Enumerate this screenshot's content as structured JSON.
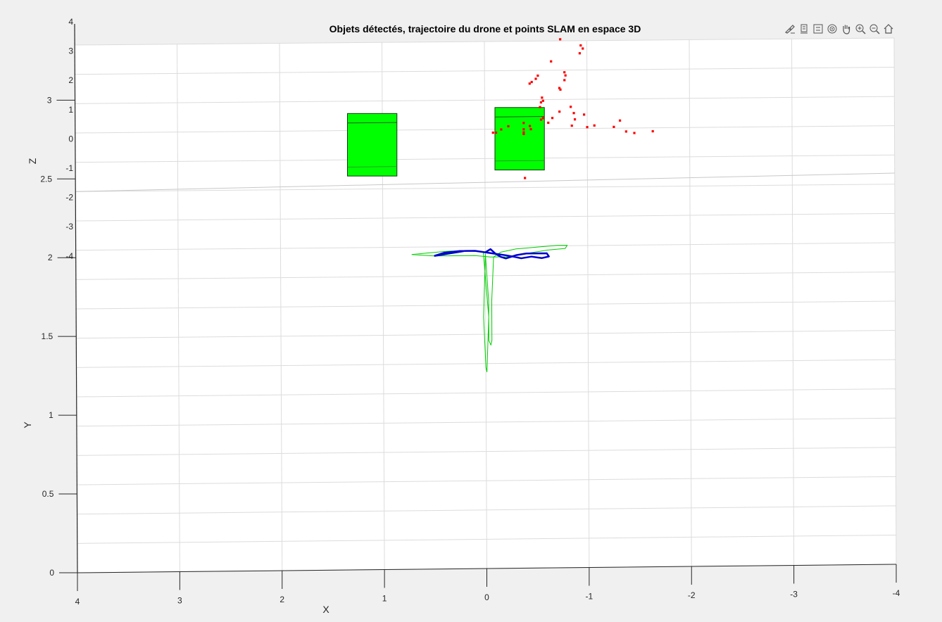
{
  "chart_data": {
    "type": "scatter",
    "title": "Objets détectés, trajectoire du drone et points SLAM en espace 3D",
    "xlabel": "X",
    "ylabel": "Y",
    "zlabel": "Z",
    "x_ticks": [
      "4",
      "3",
      "2",
      "1",
      "0",
      "-1",
      "-2",
      "-3",
      "-4"
    ],
    "y_ticks": [
      "0",
      "0.5",
      "1",
      "1.5",
      "2",
      "2.5",
      "3"
    ],
    "z_ticks": [
      "4",
      "3",
      "2",
      "1",
      "0",
      "-1",
      "-2",
      "-3",
      "-4"
    ],
    "xlim": [
      -4,
      4
    ],
    "ylim": [
      0,
      3
    ],
    "zlim": [
      -4,
      4
    ],
    "view": "top-down (X-Y plane)",
    "grid": true,
    "objects": [
      {
        "x": [
          0.86,
          1.34
        ],
        "y": [
          2.5,
          2.9
        ],
        "color": "#00ff00"
      },
      {
        "x": [
          -0.58,
          -0.1
        ],
        "y": [
          2.53,
          2.93
        ],
        "color": "#00ff00"
      }
    ],
    "slam_points": {
      "color": "#ff0000",
      "points": [
        [
          -0.74,
          3.36
        ],
        [
          -0.94,
          3.32
        ],
        [
          -0.96,
          3.3
        ],
        [
          -0.93,
          3.27
        ],
        [
          -0.65,
          3.22
        ],
        [
          -0.78,
          3.15
        ],
        [
          -0.79,
          3.13
        ],
        [
          -0.52,
          3.13
        ],
        [
          -0.5,
          3.11
        ],
        [
          -0.46,
          3.09
        ],
        [
          -0.44,
          3.08
        ],
        [
          -0.78,
          3.1
        ],
        [
          -0.73,
          3.05
        ],
        [
          -0.74,
          3.04
        ],
        [
          -0.56,
          2.99
        ],
        [
          -0.57,
          2.97
        ],
        [
          -0.55,
          2.96
        ],
        [
          -0.54,
          2.93
        ],
        [
          -0.84,
          2.93
        ],
        [
          -0.73,
          2.9
        ],
        [
          -0.97,
          2.88
        ],
        [
          -0.87,
          2.89
        ],
        [
          -0.66,
          2.86
        ],
        [
          -0.57,
          2.86
        ],
        [
          -0.55,
          2.85
        ],
        [
          -0.88,
          2.85
        ],
        [
          -1.32,
          2.84
        ],
        [
          -0.62,
          2.83
        ],
        [
          -0.38,
          2.83
        ],
        [
          -0.44,
          2.81
        ],
        [
          -0.85,
          2.81
        ],
        [
          -1.07,
          2.81
        ],
        [
          -1.0,
          2.8
        ],
        [
          -1.26,
          2.8
        ],
        [
          -0.16,
          2.79
        ],
        [
          -0.23,
          2.81
        ],
        [
          -0.38,
          2.79
        ],
        [
          -0.45,
          2.79
        ],
        [
          -0.11,
          2.77
        ],
        [
          -0.08,
          2.77
        ],
        [
          -0.38,
          2.77
        ],
        [
          -1.38,
          2.77
        ],
        [
          -0.38,
          2.76
        ],
        [
          -1.46,
          2.76
        ],
        [
          -1.64,
          2.77
        ],
        [
          -0.39,
          2.48
        ]
      ]
    },
    "series": [
      {
        "color": "#00cc00",
        "x": [
          0.72,
          0.55,
          0.35,
          0.15,
          0.02,
          -0.03,
          -0.01,
          0.0,
          0.02,
          0.0,
          -0.03,
          -0.03,
          -0.05,
          -0.06,
          -0.06,
          -0.08,
          -0.15,
          -0.3,
          -0.5,
          -0.7,
          -0.8,
          -0.78,
          -0.6,
          -0.4,
          -0.2,
          -0.05,
          0.1,
          0.3,
          0.5,
          0.72
        ],
        "y": [
          2.0,
          2.01,
          2.02,
          2.02,
          2.01,
          1.6,
          1.25,
          1.28,
          1.6,
          2.0,
          1.7,
          1.45,
          1.42,
          1.45,
          1.7,
          1.98,
          2.01,
          2.03,
          2.04,
          2.05,
          2.05,
          2.03,
          2.02,
          2.0,
          1.98,
          1.98,
          1.99,
          1.99,
          1.99,
          2.0
        ]
      },
      {
        "color": "#0000cc",
        "x": [
          0.5,
          0.4,
          0.3,
          0.2,
          0.1,
          0.0,
          -0.05,
          -0.1,
          -0.15,
          -0.2,
          -0.3,
          -0.4,
          -0.5,
          -0.6,
          -0.62,
          -0.55,
          -0.45,
          -0.35,
          -0.28,
          -0.2,
          -0.1,
          0.0,
          0.1,
          0.25,
          0.4,
          0.5
        ],
        "y": [
          1.99,
          2.0,
          2.01,
          2.02,
          2.02,
          2.01,
          2.03,
          2.0,
          1.98,
          1.97,
          1.99,
          2.0,
          2.0,
          2.0,
          1.98,
          1.97,
          1.98,
          1.97,
          1.98,
          1.99,
          2.0,
          2.01,
          2.02,
          2.02,
          2.01,
          1.99
        ]
      }
    ]
  },
  "toolbar": {
    "buttons": [
      "brush-icon",
      "datatip-icon",
      "legend-icon",
      "rotate-icon",
      "pan-icon",
      "zoom-in-icon",
      "zoom-out-icon",
      "home-icon"
    ]
  }
}
